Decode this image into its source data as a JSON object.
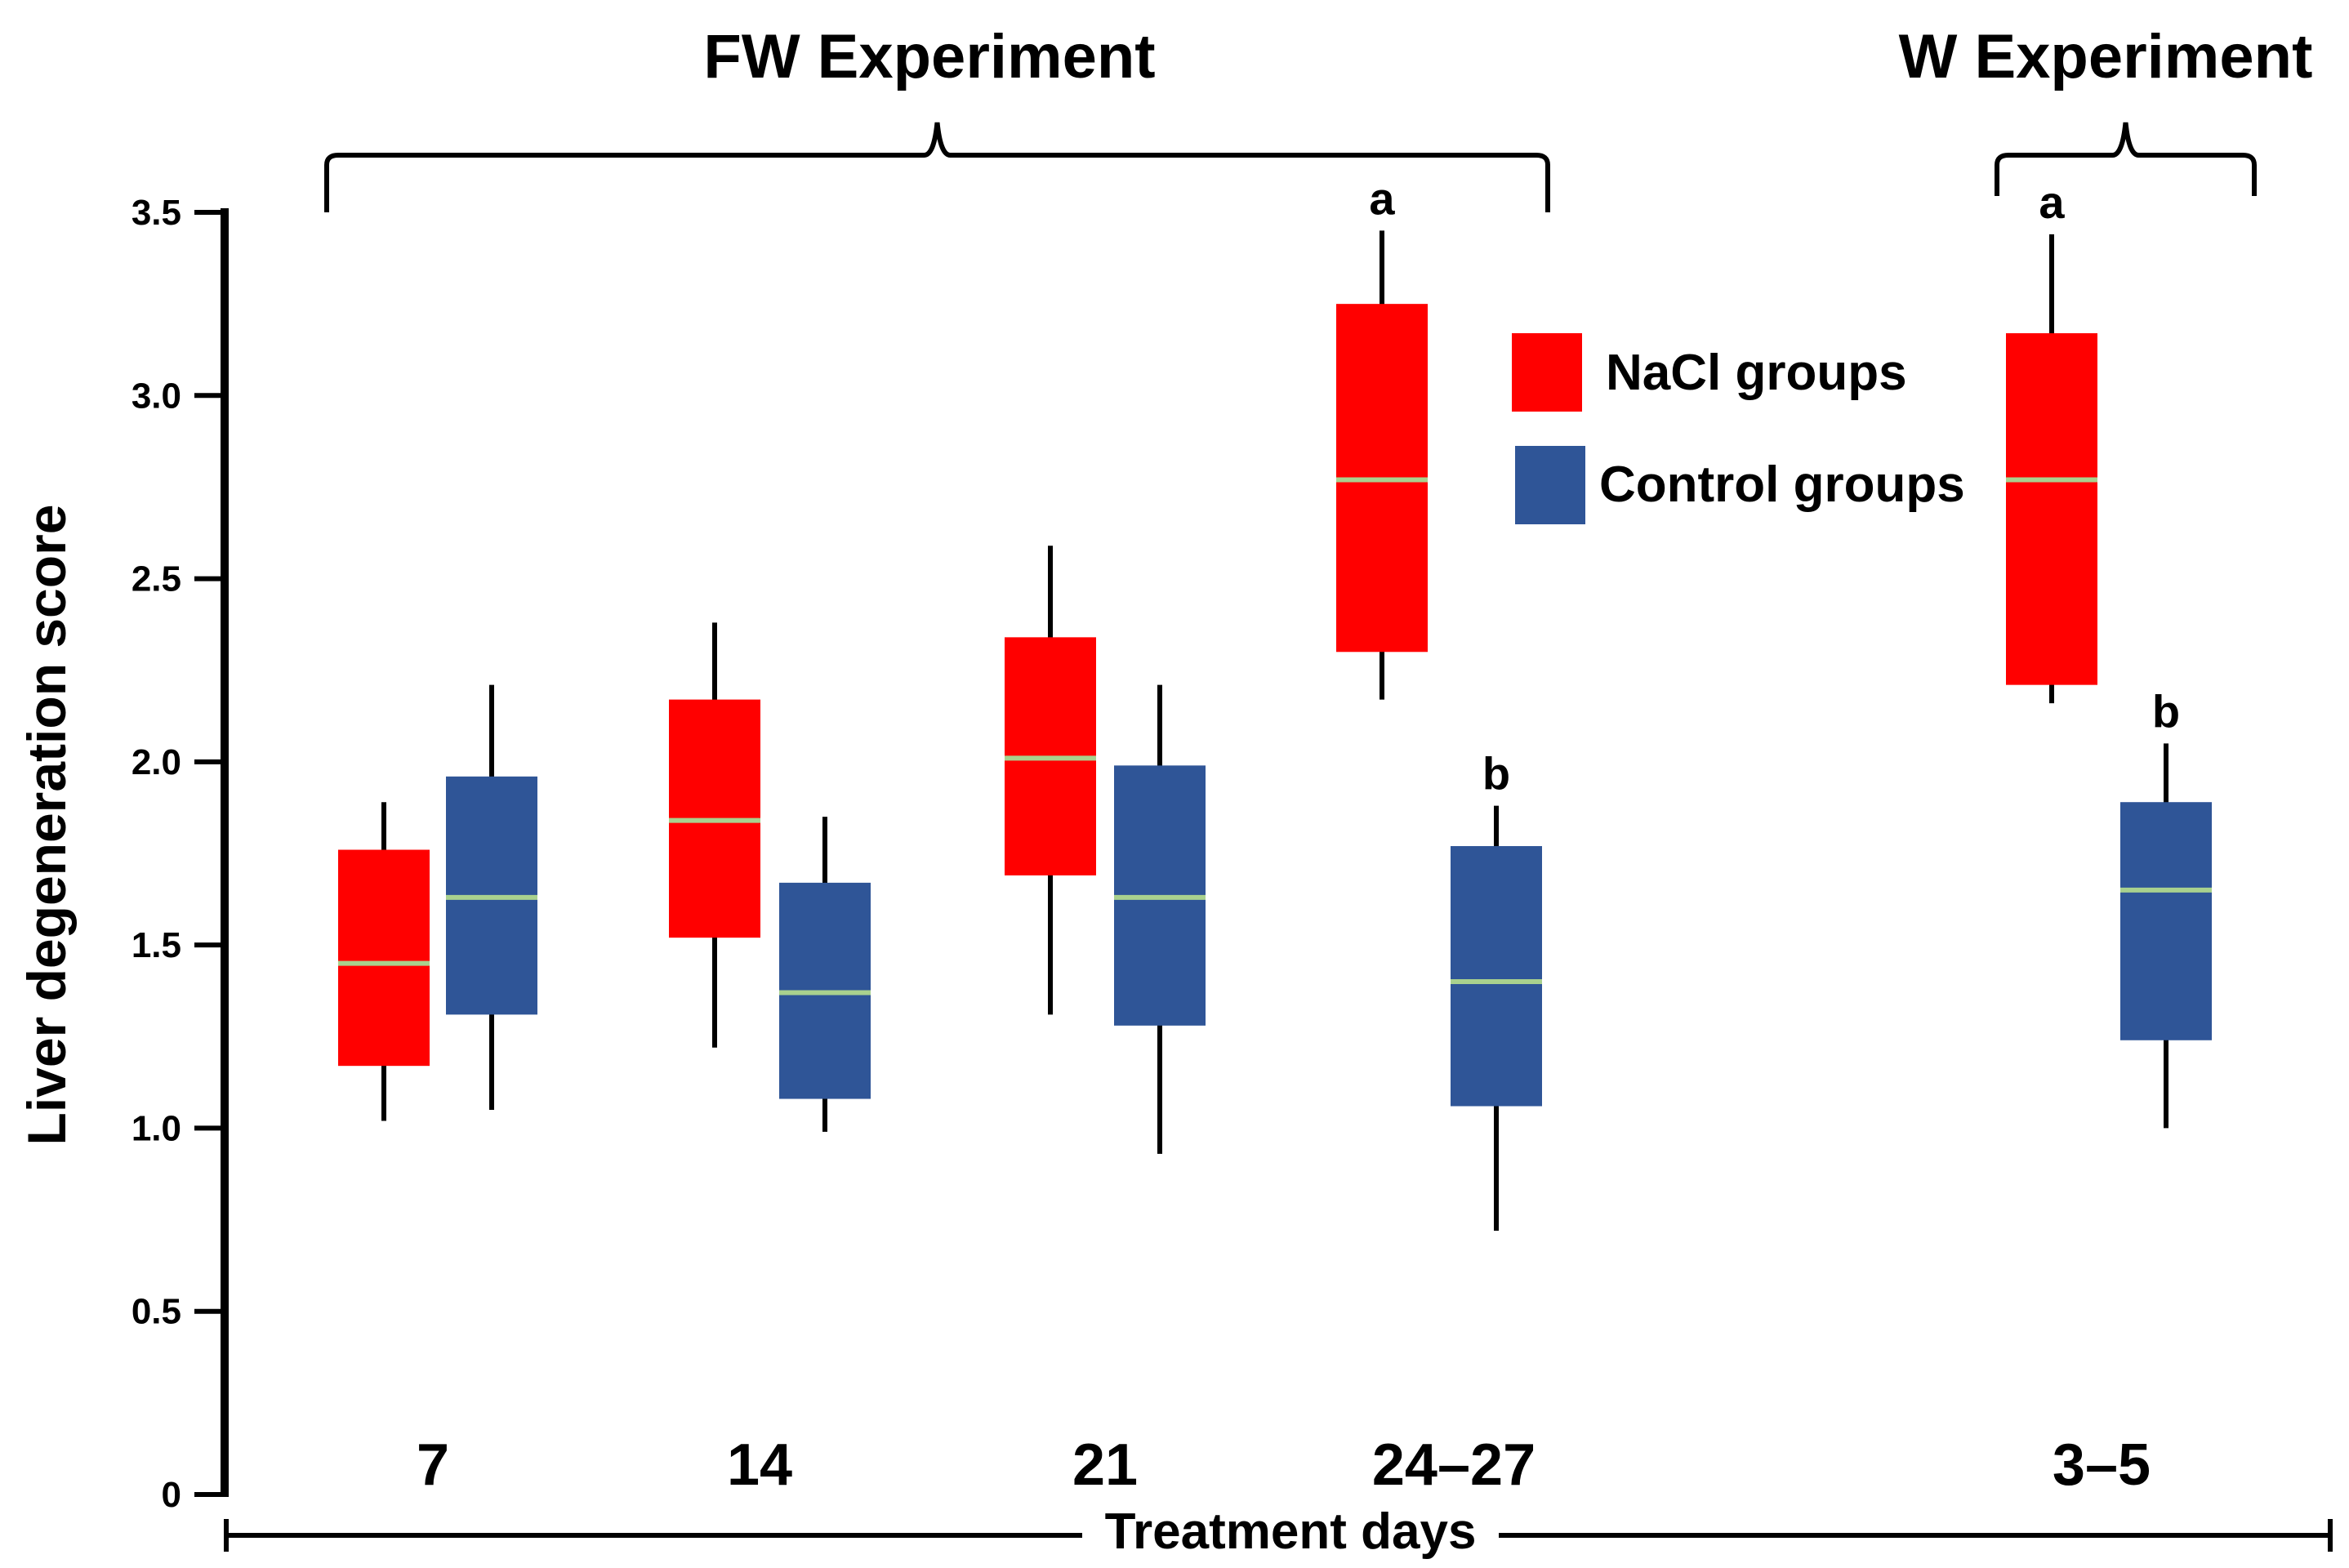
{
  "chart_data": {
    "type": "box",
    "title": "",
    "ylabel": "Liver degeneration score",
    "xlabel": "Treatment days",
    "ylim": [
      0,
      3.5
    ],
    "yticks": [
      "0",
      "0.5",
      "1.0",
      "1.5",
      "2.0",
      "2.5",
      "3.0",
      "3.5"
    ],
    "categories": [
      "7",
      "14",
      "21",
      "24–27",
      "3–5"
    ],
    "groups": [
      {
        "name": "FW Experiment",
        "categories": [
          "7",
          "14",
          "21",
          "24–27"
        ]
      },
      {
        "name": "W Experiment",
        "categories": [
          "3–5"
        ]
      }
    ],
    "series": [
      {
        "name": "NaCl groups",
        "color": "#ff0000",
        "boxes": [
          {
            "min": 1.02,
            "q1": 1.17,
            "median": 1.45,
            "q3": 1.76,
            "max": 1.89,
            "label": ""
          },
          {
            "min": 1.22,
            "q1": 1.52,
            "median": 1.84,
            "q3": 2.17,
            "max": 2.38,
            "label": ""
          },
          {
            "min": 1.31,
            "q1": 1.69,
            "median": 2.01,
            "q3": 2.34,
            "max": 2.59,
            "label": ""
          },
          {
            "min": 2.17,
            "q1": 2.3,
            "median": 2.77,
            "q3": 3.25,
            "max": 3.45,
            "label": "a"
          },
          {
            "min": 2.16,
            "q1": 2.21,
            "median": 2.77,
            "q3": 3.17,
            "max": 3.44,
            "label": "a"
          }
        ]
      },
      {
        "name": "Control groups",
        "color": "#2f5597",
        "boxes": [
          {
            "min": 1.05,
            "q1": 1.31,
            "median": 1.63,
            "q3": 1.96,
            "max": 2.21,
            "label": ""
          },
          {
            "min": 0.99,
            "q1": 1.08,
            "median": 1.37,
            "q3": 1.67,
            "max": 1.85,
            "label": ""
          },
          {
            "min": 0.93,
            "q1": 1.28,
            "median": 1.63,
            "q3": 1.99,
            "max": 2.21,
            "label": ""
          },
          {
            "min": 0.72,
            "q1": 1.06,
            "median": 1.4,
            "q3": 1.77,
            "max": 1.88,
            "label": "b"
          },
          {
            "min": 1.0,
            "q1": 1.24,
            "median": 1.65,
            "q3": 1.89,
            "max": 2.05,
            "label": "b"
          }
        ]
      }
    ],
    "median_color": "#a9d18e",
    "legend": [
      {
        "label": "NaCl groups",
        "color": "#ff0000"
      },
      {
        "label": "Control groups",
        "color": "#2f5597"
      }
    ],
    "legend_position": "top-right",
    "grid": false
  }
}
